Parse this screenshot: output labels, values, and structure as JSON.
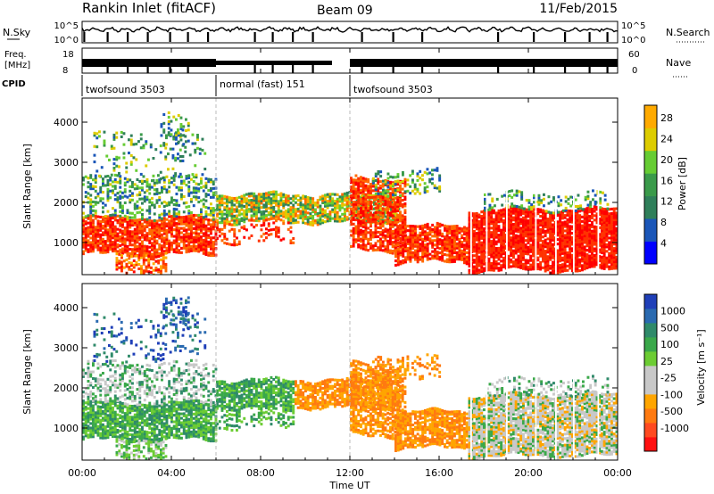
{
  "header": {
    "title": "Rankin Inlet (fitACF)",
    "beam": "Beam 09",
    "date": "11/Feb/2015"
  },
  "colors": {
    "power_scale": [
      "#0000ff",
      "#1a56b8",
      "#2f7f5a",
      "#3a9a4a",
      "#66cc33",
      "#ddcc00",
      "#ffaa00",
      "#ff6a00",
      "#ff3300",
      "#ff0000"
    ],
    "velocity_scale": [
      "#1f3fb8",
      "#2a6ab0",
      "#2f8a6a",
      "#3aa84a",
      "#6ccc33",
      "#c8c8c8",
      "#c8c8c8",
      "#ffa500",
      "#ff7a10",
      "#ff4a20",
      "#ff1010"
    ]
  },
  "chart_data": [
    {
      "type": "line",
      "name": "nsky-nsearch",
      "left_label": "N.Sky",
      "right_label": "N.Search",
      "left_ticks": [
        "10^5",
        "10^0"
      ],
      "right_ticks": [
        "10^5",
        "10^0"
      ]
    },
    {
      "type": "line",
      "name": "freq-nave",
      "left_label_top": "Freq.",
      "left_label_bottom": "[MHz]",
      "right_label": "Nave",
      "left_ticks": [
        18,
        8
      ],
      "right_ticks": [
        60,
        0
      ]
    },
    {
      "type": "table",
      "name": "cpid",
      "label": "CPID",
      "segments": [
        {
          "label": "twofsound 3503",
          "start_hour": 0,
          "end_hour": 6
        },
        {
          "label": "normal (fast) 151",
          "start_hour": 6,
          "end_hour": 12
        },
        {
          "label": "twofsound 3503",
          "start_hour": 12,
          "end_hour": 24
        }
      ]
    },
    {
      "type": "heatmap",
      "name": "power",
      "ylabel": "Slant Range [km]",
      "xlim": [
        0,
        24
      ],
      "ylim": [
        200,
        4600
      ],
      "yticks": [
        1000,
        2000,
        3000,
        4000
      ],
      "colorbar_label": "Power [dB]",
      "colorbar_ticks": [
        4,
        8,
        12,
        16,
        20,
        24,
        28
      ]
    },
    {
      "type": "heatmap",
      "name": "velocity",
      "ylabel": "Slant Range [km]",
      "xlabel": "Time UT",
      "xlim": [
        0,
        24
      ],
      "ylim": [
        200,
        4600
      ],
      "yticks": [
        1000,
        2000,
        3000,
        4000
      ],
      "xticks": [
        "00:00",
        "04:00",
        "08:00",
        "12:00",
        "16:00",
        "20:00",
        "00:00"
      ],
      "colorbar_label": "Velocity [m s⁻¹]",
      "colorbar_ticks": [
        1000,
        500,
        100,
        25,
        -25,
        -100,
        -500,
        -1000
      ]
    }
  ]
}
